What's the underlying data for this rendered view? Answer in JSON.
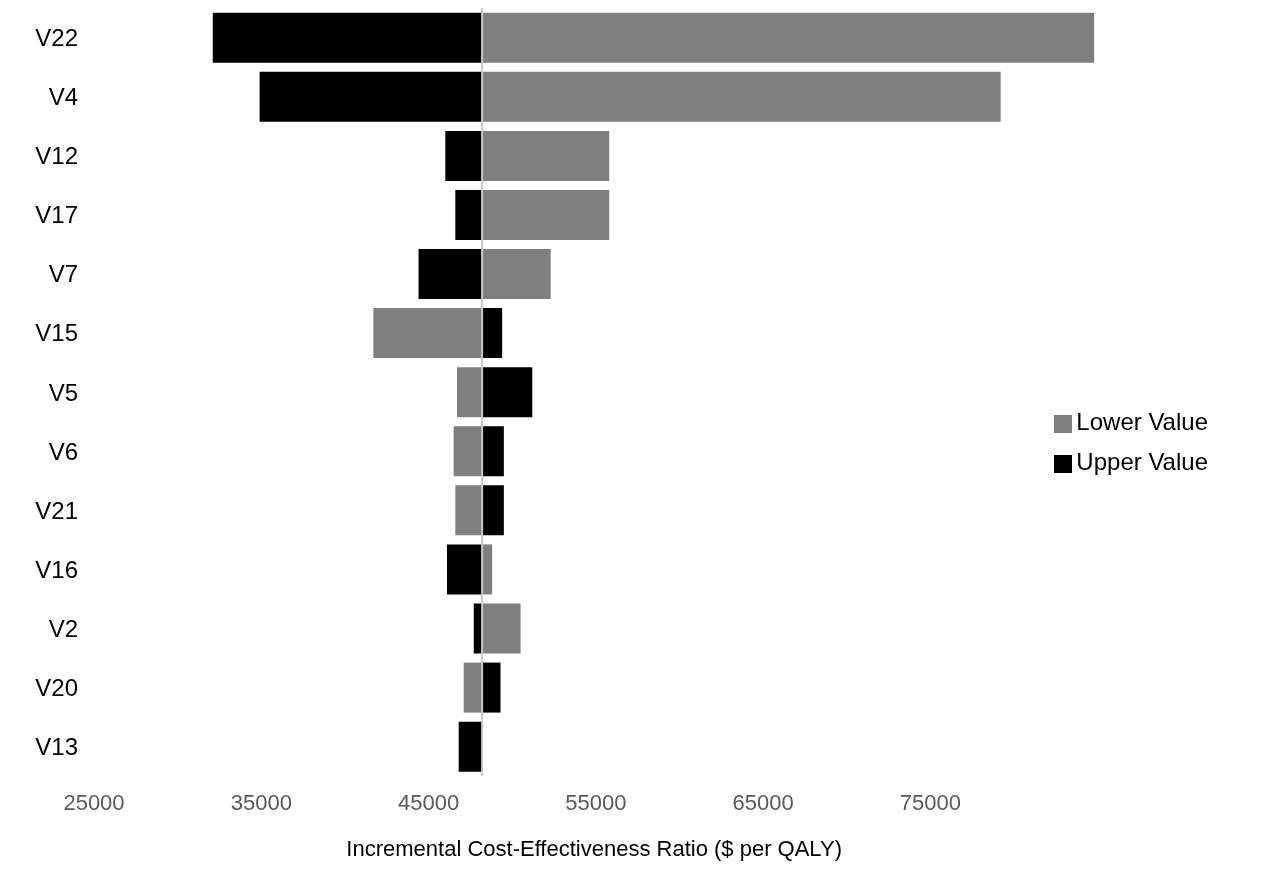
{
  "chart_data": {
    "type": "bar",
    "orientation": "horizontal",
    "xlabel": "Incremental Cost-Effectiveness Ratio ($ per QALY)",
    "categories": [
      "V22",
      "V4",
      "V12",
      "V17",
      "V7",
      "V15",
      "V5",
      "V6",
      "V21",
      "V16",
      "V2",
      "V20",
      "V13"
    ],
    "series": [
      {
        "name": "Lower Value",
        "color": "#7f7f7f",
        "base": [
          48200,
          48200,
          48200,
          48200,
          48200,
          48200,
          48200,
          48200,
          48200,
          48200,
          48200,
          48200,
          null
        ],
        "values": [
          36600,
          31000,
          7600,
          7600,
          4100,
          -6500,
          -1500,
          -1700,
          -1600,
          600,
          2300,
          -1100,
          null
        ]
      },
      {
        "name": "Upper Value",
        "color": "#000000",
        "base": [
          48200,
          48200,
          48200,
          48200,
          48200,
          48200,
          48200,
          48200,
          48200,
          48200,
          48200,
          48200,
          48200
        ],
        "values": [
          -16100,
          -13300,
          -2200,
          -1600,
          -3800,
          1200,
          3000,
          1300,
          1300,
          -2100,
          -500,
          1100,
          -1400
        ]
      }
    ],
    "xlim": [
      25000,
      84800
    ],
    "xticks": [
      25000,
      35000,
      45000,
      55000,
      65000,
      75000
    ],
    "ref_lines": [
      {
        "axis": "x",
        "value": 48200,
        "color": "#c8c8c8"
      }
    ],
    "legend": "right"
  }
}
